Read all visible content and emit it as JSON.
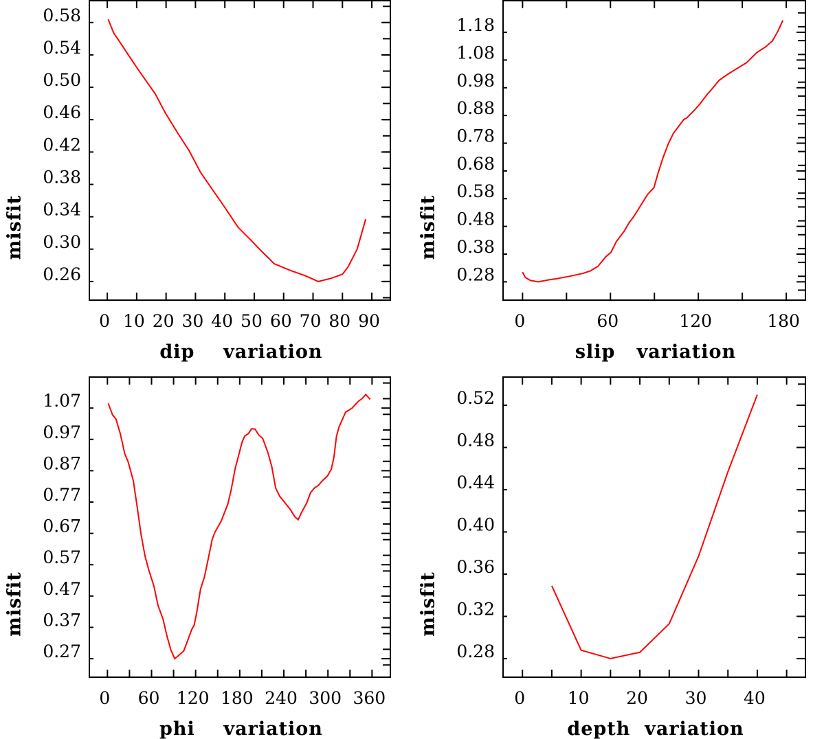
{
  "chart_data": [
    {
      "type": "line",
      "xlabel": "dip    variation",
      "ylabel": "misfit",
      "xlim": [
        -6.1,
        96.3
      ],
      "ylim": [
        0.237,
        0.607
      ],
      "x_ticks": [
        0,
        10,
        20,
        30,
        40,
        50,
        60,
        70,
        80,
        90
      ],
      "x_tick_labels": [
        "0",
        "10",
        "20",
        "30",
        "40",
        "50",
        "60",
        "70",
        "80",
        "90"
      ],
      "x_minor": [],
      "y_ticks": [
        0.58,
        0.54,
        0.5,
        0.46,
        0.42,
        0.38,
        0.34,
        0.3,
        0.26
      ],
      "y_tick_labels": [
        "0.58",
        "0.54",
        "0.50",
        "0.46",
        "0.42",
        "0.38",
        "0.34",
        "0.30",
        "0.26"
      ],
      "y_minor_step": 0.02,
      "color": "#ff0000",
      "x": [
        0.3,
        2.2,
        4.8,
        10.1,
        16.3,
        19.8,
        24.2,
        27.8,
        31.7,
        35.7,
        40.1,
        44.5,
        48.9,
        51.5,
        56.8,
        62.1,
        67.4,
        71.8,
        76.2,
        80.0,
        81.9,
        85.0,
        87.9
      ],
      "y": [
        0.584,
        0.567,
        0.553,
        0.524,
        0.492,
        0.468,
        0.442,
        0.422,
        0.395,
        0.374,
        0.351,
        0.327,
        0.311,
        0.301,
        0.282,
        0.274,
        0.267,
        0.26,
        0.264,
        0.269,
        0.278,
        0.3,
        0.337
      ]
    },
    {
      "type": "line",
      "xlabel": "slip   variation",
      "ylabel": "misfit",
      "xlim": [
        -13.3,
        193.1
      ],
      "ylim": [
        0.214,
        1.294
      ],
      "x_ticks": [
        0,
        60,
        120,
        180
      ],
      "x_tick_labels": [
        "0",
        "60",
        "120",
        "180"
      ],
      "x_minor": [
        30,
        90,
        150
      ],
      "y_ticks": [
        1.18,
        1.08,
        0.98,
        0.88,
        0.78,
        0.68,
        0.58,
        0.48,
        0.38,
        0.28
      ],
      "y_tick_labels": [
        "1.18",
        "1.08",
        "0.98",
        "0.88",
        "0.78",
        "0.68",
        "0.58",
        "0.48",
        "0.38",
        "0.28"
      ],
      "y_minor_step": 0.05,
      "color": "#ff0000",
      "x": [
        0,
        1.8,
        5.3,
        10.7,
        17.8,
        23.1,
        32.0,
        40.9,
        46.2,
        51.5,
        56.9,
        60.4,
        64.0,
        69.3,
        72.9,
        75.5,
        80.0,
        85.3,
        89.7,
        92.4,
        95.9,
        99.5,
        103.0,
        106.6,
        110.1,
        111.9,
        117.3,
        120.8,
        126.2,
        129.7,
        134.2,
        140.4,
        147.5,
        152.8,
        159.9,
        166.1,
        170.6,
        174.1,
        177.7
      ],
      "y": [
        0.315,
        0.296,
        0.285,
        0.28,
        0.287,
        0.291,
        0.3,
        0.31,
        0.319,
        0.336,
        0.371,
        0.387,
        0.425,
        0.462,
        0.495,
        0.512,
        0.55,
        0.595,
        0.62,
        0.67,
        0.728,
        0.778,
        0.816,
        0.841,
        0.866,
        0.87,
        0.899,
        0.92,
        0.957,
        0.978,
        1.007,
        1.03,
        1.053,
        1.07,
        1.107,
        1.128,
        1.149,
        1.182,
        1.223
      ]
    },
    {
      "type": "line",
      "xlabel": "phi    variation",
      "ylabel": "misfit",
      "xlim": [
        -24.6,
        384.9
      ],
      "ylim": [
        0.211,
        1.169
      ],
      "x_ticks": [
        0,
        60,
        120,
        180,
        240,
        300,
        360
      ],
      "x_tick_labels": [
        "0",
        "60",
        "120",
        "180",
        "240",
        "300",
        "360"
      ],
      "x_minor": [
        30,
        90,
        150,
        210,
        270,
        330
      ],
      "y_ticks": [
        1.07,
        0.97,
        0.87,
        0.77,
        0.67,
        0.57,
        0.47,
        0.37,
        0.27
      ],
      "y_tick_labels": [
        "1.07",
        "0.97",
        "0.87",
        "0.77",
        "0.67",
        "0.57",
        "0.47",
        "0.37",
        "0.27"
      ],
      "y_minor_step": 0.05,
      "color": "#ff0000",
      "x": [
        1.1,
        7.0,
        11.6,
        17.6,
        23.6,
        28.2,
        35.2,
        40.5,
        45.8,
        51.1,
        56.3,
        63.4,
        68.7,
        75.7,
        81.0,
        86.3,
        91.5,
        96.8,
        103.9,
        109.2,
        114.4,
        118.0,
        121.5,
        126.8,
        132.0,
        137.3,
        142.6,
        146.1,
        154.9,
        163.7,
        168.3,
        173.6,
        177.8,
        183.1,
        186.6,
        191.9,
        196.1,
        200.7,
        206.0,
        211.3,
        218.3,
        223.6,
        228.9,
        234.2,
        239.4,
        248.2,
        255.3,
        259.5,
        264.1,
        271.1,
        276.4,
        281.7,
        287.0,
        292.3,
        299.3,
        304.6,
        308.1,
        311.6,
        315.2,
        324.0,
        332.8,
        341.6,
        346.8,
        351.4,
        357.4
      ],
      "y": [
        1.085,
        1.048,
        1.035,
        0.988,
        0.924,
        0.898,
        0.838,
        0.755,
        0.666,
        0.598,
        0.553,
        0.501,
        0.441,
        0.396,
        0.343,
        0.298,
        0.27,
        0.28,
        0.295,
        0.328,
        0.362,
        0.377,
        0.418,
        0.493,
        0.531,
        0.591,
        0.651,
        0.673,
        0.71,
        0.763,
        0.808,
        0.875,
        0.913,
        0.961,
        0.98,
        0.989,
        1.004,
        1.003,
        0.984,
        0.973,
        0.928,
        0.883,
        0.815,
        0.789,
        0.774,
        0.748,
        0.722,
        0.714,
        0.737,
        0.767,
        0.8,
        0.815,
        0.823,
        0.838,
        0.853,
        0.875,
        0.913,
        0.98,
        1.01,
        1.057,
        1.07,
        1.092,
        1.101,
        1.113,
        1.098
      ]
    },
    {
      "type": "line",
      "xlabel": "depth  variation",
      "ylabel": "misfit",
      "xlim": [
        -3.3,
        48.2
      ],
      "ylim": [
        0.2624,
        0.5467
      ],
      "x_ticks": [
        0,
        10,
        20,
        30,
        40
      ],
      "x_tick_labels": [
        "0",
        "10",
        "20",
        "30",
        "40"
      ],
      "x_minor": [
        5,
        15,
        25,
        35,
        45
      ],
      "y_ticks": [
        0.52,
        0.48,
        0.44,
        0.4,
        0.36,
        0.32,
        0.28
      ],
      "y_tick_labels": [
        "0.52",
        "0.48",
        "0.44",
        "0.40",
        "0.36",
        "0.32",
        "0.28"
      ],
      "y_minor_step": 0.02,
      "color": "#ff0000",
      "x": [
        5,
        10,
        15,
        20,
        25,
        30,
        35,
        40
      ],
      "y": [
        0.349,
        0.288,
        0.28,
        0.286,
        0.313,
        0.377,
        0.457,
        0.53
      ]
    }
  ]
}
